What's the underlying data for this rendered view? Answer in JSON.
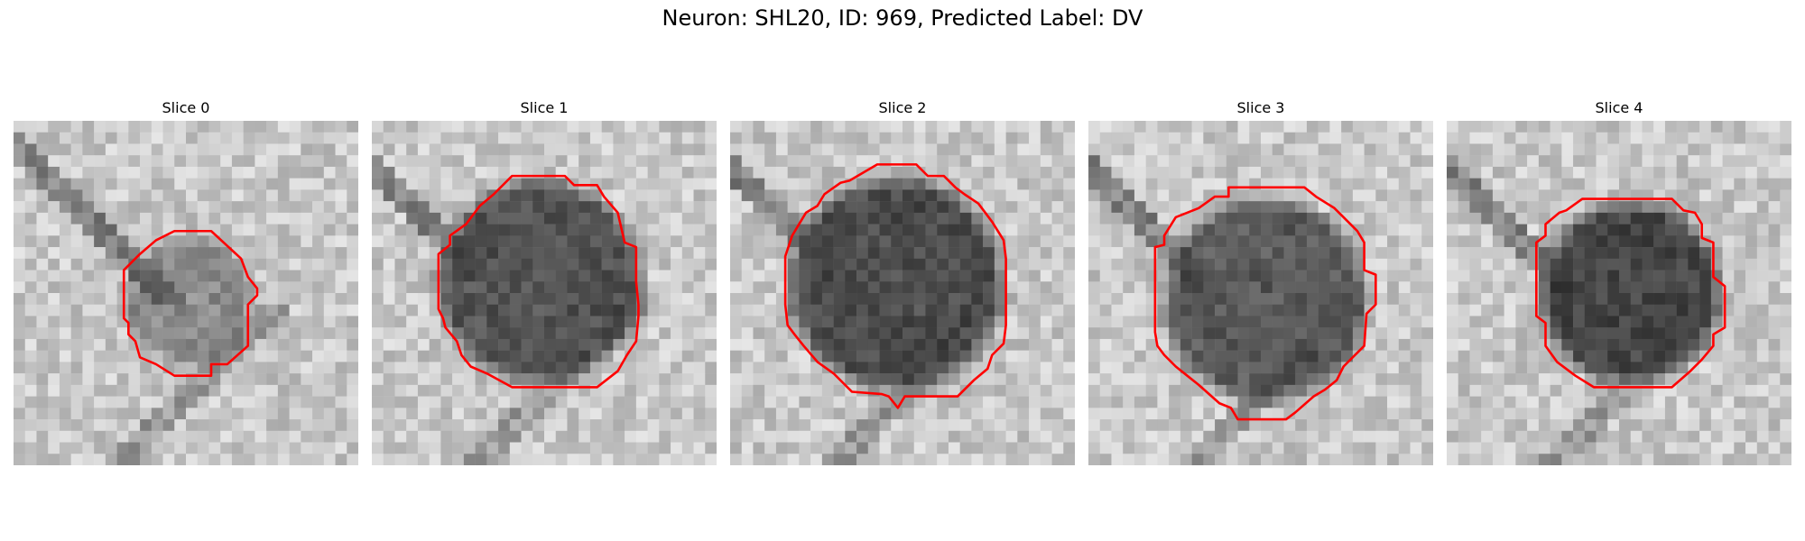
{
  "figure": {
    "title": "Neuron: SHL20, ID: 969, Predicted Label: DV"
  },
  "panels": [
    {
      "label": "Slice 0",
      "blob_strength": 0.45,
      "contour_color": "#ff0000"
    },
    {
      "label": "Slice 1",
      "blob_strength": 0.85,
      "contour_color": "#ff0000"
    },
    {
      "label": "Slice 2",
      "blob_strength": 0.9,
      "contour_color": "#ff0000"
    },
    {
      "label": "Slice 3",
      "blob_strength": 0.8,
      "contour_color": "#ff0000"
    },
    {
      "label": "Slice 4",
      "blob_strength": 0.95,
      "contour_color": "#ff0000"
    }
  ],
  "colors": {
    "background": "#ffffff",
    "contour": "#ff0000"
  }
}
